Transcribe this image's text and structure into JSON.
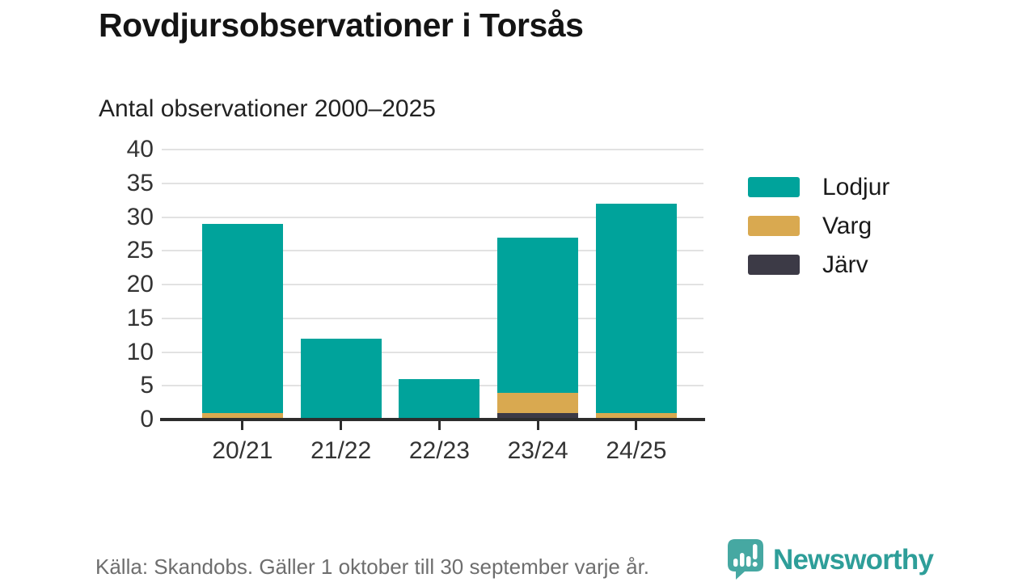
{
  "header": {
    "title": "Rovdjursobservationer i Torsås",
    "subtitle": "Antal observationer 2000–2025"
  },
  "chart_data": {
    "type": "bar",
    "stacked": true,
    "title": "Rovdjursobservationer i Torsås",
    "subtitle": "Antal observationer 2000–2025",
    "categories": [
      "20/21",
      "21/22",
      "22/23",
      "23/24",
      "24/25"
    ],
    "series": [
      {
        "name": "Lodjur",
        "color": "#00a39b",
        "values": [
          28,
          12,
          6,
          23,
          31
        ]
      },
      {
        "name": "Varg",
        "color": "#d9a950",
        "values": [
          1,
          0,
          0,
          3,
          1
        ]
      },
      {
        "name": "Järv",
        "color": "#3c3a46",
        "values": [
          0,
          0,
          0,
          1,
          0
        ]
      }
    ],
    "stack_order_bottom_to_top": [
      "Järv",
      "Varg",
      "Lodjur"
    ],
    "totals": [
      29,
      12,
      6,
      27,
      32
    ],
    "ylim": [
      0,
      40
    ],
    "ytick_step": 5,
    "xlabel": "",
    "ylabel": "",
    "grid": "horizontal",
    "legend_position": "right"
  },
  "footer": {
    "source_note": "Källa: Skandobs. Gäller 1 oktober till 30 september varje år.",
    "brand": "Newsworthy"
  },
  "colors": {
    "lodjur_teal": "#00a39b",
    "varg_gold": "#d9a950",
    "jarv_dark": "#3c3a46",
    "axis": "#2d2d2d",
    "gridline": "#e2e2e2",
    "text_dark": "#1a1a1a",
    "text_muted": "#6e6e6e",
    "logo_bubble_teal": "#46a8a2",
    "logo_text_teal": "#2e9e99"
  }
}
